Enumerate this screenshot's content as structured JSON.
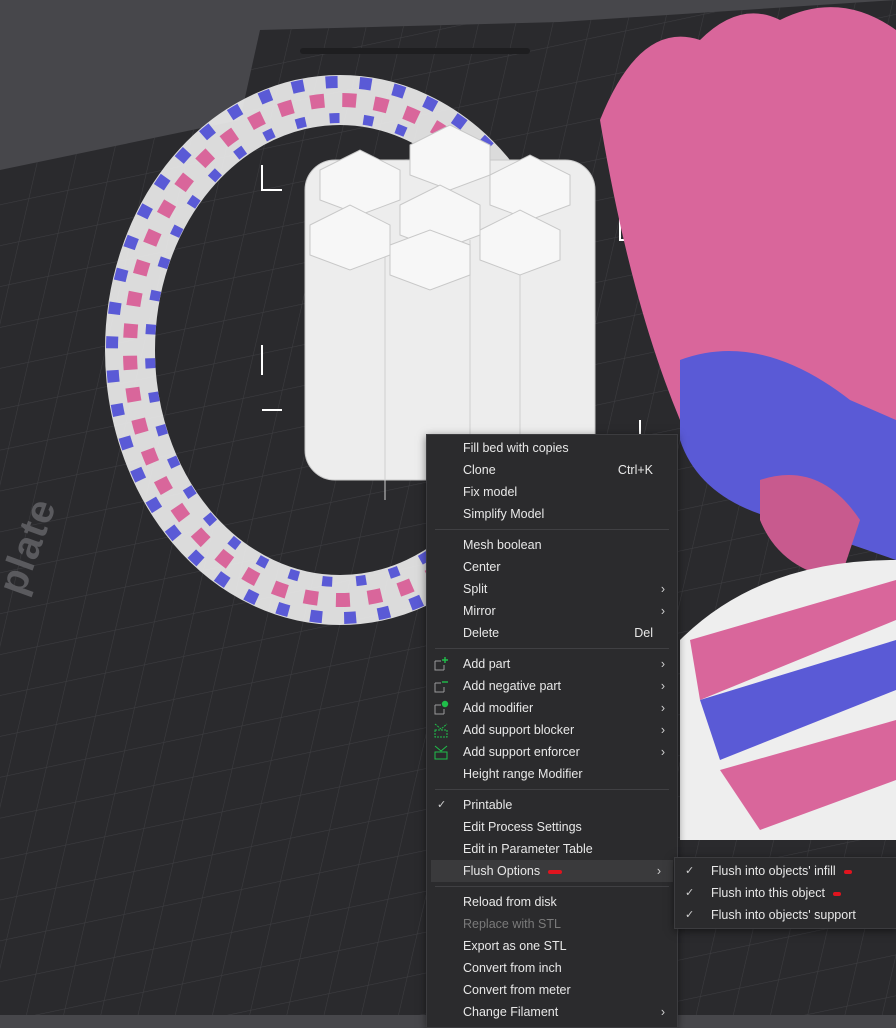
{
  "viewport": {
    "bed_label": "plate",
    "colors": {
      "background": "#47474b",
      "bed": "#2a2a2d",
      "grid": "#3d3d41",
      "pink": "#d9669b",
      "blue": "#5a5ad6",
      "white_model": "#eeeeee",
      "accent_green": "#1fbf4a",
      "marker_red": "#e0141e"
    }
  },
  "context_menu": {
    "groups": [
      [
        {
          "label": "Fill bed with copies"
        },
        {
          "label": "Clone",
          "shortcut": "Ctrl+K"
        },
        {
          "label": "Fix model"
        },
        {
          "label": "Simplify Model"
        }
      ],
      [
        {
          "label": "Mesh boolean"
        },
        {
          "label": "Center"
        },
        {
          "label": "Split",
          "submenu": true
        },
        {
          "label": "Mirror",
          "submenu": true
        },
        {
          "label": "Delete",
          "shortcut": "Del"
        }
      ],
      [
        {
          "label": "Add part",
          "icon": "add-part-icon",
          "submenu": true
        },
        {
          "label": "Add negative part",
          "icon": "add-negative-part-icon",
          "submenu": true
        },
        {
          "label": "Add modifier",
          "icon": "add-modifier-icon",
          "submenu": true
        },
        {
          "label": "Add support blocker",
          "icon": "support-blocker-icon",
          "submenu": true
        },
        {
          "label": "Add support enforcer",
          "icon": "support-enforcer-icon",
          "submenu": true
        },
        {
          "label": "Height range Modifier"
        }
      ],
      [
        {
          "label": "Printable",
          "checked": true
        },
        {
          "label": "Edit Process Settings"
        },
        {
          "label": "Edit in Parameter Table"
        },
        {
          "label": "Flush Options",
          "submenu": true,
          "highlighted": true
        }
      ],
      [
        {
          "label": "Reload from disk"
        },
        {
          "label": "Replace with STL",
          "disabled": true
        },
        {
          "label": "Export as one STL"
        },
        {
          "label": "Convert from inch"
        },
        {
          "label": "Convert from meter"
        },
        {
          "label": "Change Filament",
          "submenu": true
        }
      ]
    ]
  },
  "flush_submenu": {
    "items": [
      {
        "label": "Flush into objects' infill",
        "checked": true
      },
      {
        "label": "Flush into this object",
        "checked": true
      },
      {
        "label": "Flush into objects' support",
        "checked": true
      }
    ]
  }
}
